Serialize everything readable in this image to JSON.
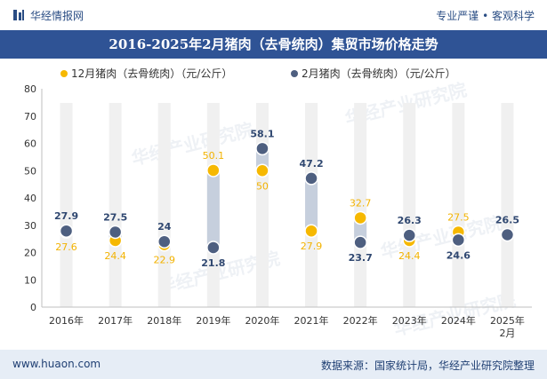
{
  "header": {
    "brand": "华经情报网",
    "slogan": "专业严谨 • 客观科学"
  },
  "footer": {
    "url": "www.huaon.com",
    "source": "数据来源：国家统计局，华经产业研究院整理"
  },
  "watermark": "华经产业研究院",
  "colors": {
    "title_bg": "#2f5395",
    "series_12": "#f6b800",
    "series_2": "#4e5f80",
    "range_bar": "#c6cfdd",
    "column_band": "#f0f0f0"
  },
  "chart_data": {
    "type": "scatter",
    "title": "2016-2025年2月猪肉（去骨统肉）集贸市场价格走势",
    "categories": [
      "2016年",
      "2017年",
      "2018年",
      "2019年",
      "2020年",
      "2021年",
      "2022年",
      "2023年",
      "2024年",
      "2025年\n2月"
    ],
    "ylim": [
      0,
      80
    ],
    "yticks": [
      0,
      10,
      20,
      30,
      40,
      50,
      60,
      70,
      80
    ],
    "legend_position": "top",
    "series": [
      {
        "name": "12月猪肉（去骨统肉）（元/公斤）",
        "color": "#f6b800",
        "values": [
          27.6,
          24.4,
          22.9,
          50.1,
          50,
          27.9,
          32.7,
          24.4,
          27.5,
          null
        ],
        "labels": [
          "27.6",
          "24.4",
          "22.9",
          "50.1",
          "50",
          "27.9",
          "32.7",
          "24.4",
          "27.5",
          ""
        ]
      },
      {
        "name": "2月猪肉（去骨统肉）（元/公斤）",
        "color": "#4e5f80",
        "values": [
          27.9,
          27.5,
          24,
          21.8,
          58.1,
          47.2,
          23.7,
          26.3,
          24.6,
          26.5
        ],
        "labels": [
          "27.9",
          "27.5",
          "24",
          "21.8",
          "58.1",
          "47.2",
          "23.7",
          "26.3",
          "24.6",
          "26.5"
        ]
      }
    ]
  }
}
